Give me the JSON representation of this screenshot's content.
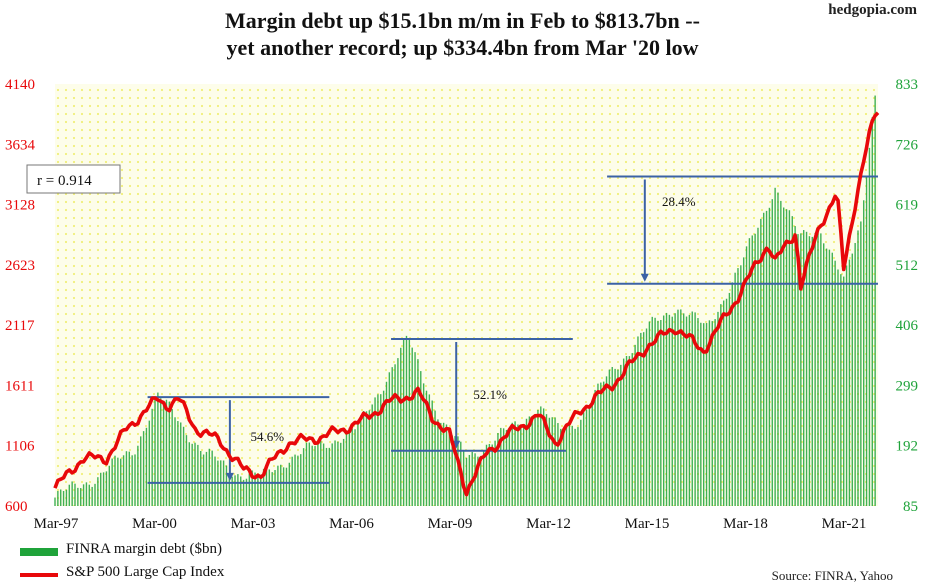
{
  "brand": "hedgopia.com",
  "title_line1": "Margin debt up $15.1bn m/m in Feb to $813.7bn --",
  "title_line2": "yet another record; up $334.4bn from Mar '20 low",
  "source": "Source: FINRA, Yahoo",
  "colors": {
    "bars": "#1fa33a",
    "line": "#e8080a",
    "plot_bg": "#fdfdea",
    "dots": "#f0ef7a",
    "ref_lines": "#3b62a6",
    "left_axis": "#e8080a",
    "right_axis": "#1fa33a"
  },
  "chart_data": {
    "type": "bar+line",
    "title": "Margin debt up $15.1bn m/m in Feb to $813.7bn -- yet another record; up $334.4bn from Mar '20 low",
    "x_labels": [
      "Mar-97",
      "Mar-00",
      "Mar-03",
      "Mar-06",
      "Mar-09",
      "Mar-12",
      "Mar-15",
      "Mar-18",
      "Mar-21"
    ],
    "left_axis": {
      "ticks": [
        "4140",
        "3634",
        "3128",
        "2623",
        "2117",
        "1611",
        "1106",
        "600"
      ],
      "range": [
        600,
        4140
      ]
    },
    "right_axis": {
      "ticks": [
        "833",
        "726",
        "619",
        "512",
        "406",
        "299",
        "192",
        "85"
      ],
      "range": [
        85,
        833
      ]
    },
    "r_label": "r = 0.914",
    "series": [
      {
        "name": "FINRA margin debt ($bn)",
        "kind": "bar",
        "axis": "right",
        "anchors": [
          [
            1997.2,
            100
          ],
          [
            1998.5,
            140
          ],
          [
            1999.5,
            185
          ],
          [
            2000.2,
            278
          ],
          [
            2000.8,
            240
          ],
          [
            2001.5,
            180
          ],
          [
            2002.5,
            145
          ],
          [
            2003.2,
            135
          ],
          [
            2004,
            170
          ],
          [
            2005,
            195
          ],
          [
            2006,
            220
          ],
          [
            2007.5,
            381
          ],
          [
            2008.5,
            230
          ],
          [
            2009.2,
            175
          ],
          [
            2010,
            200
          ],
          [
            2011.3,
            260
          ],
          [
            2011.9,
            220
          ],
          [
            2012.5,
            240
          ],
          [
            2013.5,
            330
          ],
          [
            2014.5,
            400
          ],
          [
            2015.3,
            440
          ],
          [
            2016.2,
            400
          ],
          [
            2017.2,
            510
          ],
          [
            2018.2,
            652
          ],
          [
            2018.9,
            560
          ],
          [
            2019.5,
            580
          ],
          [
            2020.2,
            479
          ],
          [
            2020.7,
            590
          ],
          [
            2021.1,
            813.7
          ]
        ]
      },
      {
        "name": "S&P 500 Large Cap Index",
        "kind": "line",
        "axis": "left",
        "anchors": [
          [
            1997.2,
            750
          ],
          [
            1998,
            1000
          ],
          [
            1998.7,
            1000
          ],
          [
            1999.3,
            1250
          ],
          [
            2000.2,
            1500
          ],
          [
            2000.5,
            1440
          ],
          [
            2000.8,
            1500
          ],
          [
            2001.3,
            1250
          ],
          [
            2002.0,
            1150
          ],
          [
            2002.7,
            900
          ],
          [
            2003.2,
            860
          ],
          [
            2004.0,
            1130
          ],
          [
            2005.0,
            1180
          ],
          [
            2006.0,
            1290
          ],
          [
            2007.0,
            1480
          ],
          [
            2007.8,
            1550
          ],
          [
            2008.2,
            1350
          ],
          [
            2008.7,
            1200
          ],
          [
            2009.2,
            730
          ],
          [
            2009.8,
            1050
          ],
          [
            2010.4,
            1200
          ],
          [
            2011.3,
            1360
          ],
          [
            2011.8,
            1130
          ],
          [
            2012.5,
            1400
          ],
          [
            2013.5,
            1630
          ],
          [
            2014.5,
            1950
          ],
          [
            2015.3,
            2100
          ],
          [
            2016.1,
            1900
          ],
          [
            2017.0,
            2300
          ],
          [
            2018.0,
            2800
          ],
          [
            2018.2,
            2650
          ],
          [
            2018.8,
            2900
          ],
          [
            2018.95,
            2450
          ],
          [
            2019.5,
            2950
          ],
          [
            2020.0,
            3230
          ],
          [
            2020.2,
            2580
          ],
          [
            2020.6,
            3250
          ],
          [
            2020.9,
            3650
          ],
          [
            2021.15,
            3910
          ]
        ]
      }
    ],
    "annotations": [
      {
        "label": "54.6%",
        "from": 278,
        "to": 126,
        "axis": "right"
      },
      {
        "label": "52.1%",
        "from": 381,
        "to": 183,
        "axis": "right"
      },
      {
        "label": "28.4%",
        "from": 669,
        "to": 479,
        "axis": "right"
      }
    ]
  }
}
